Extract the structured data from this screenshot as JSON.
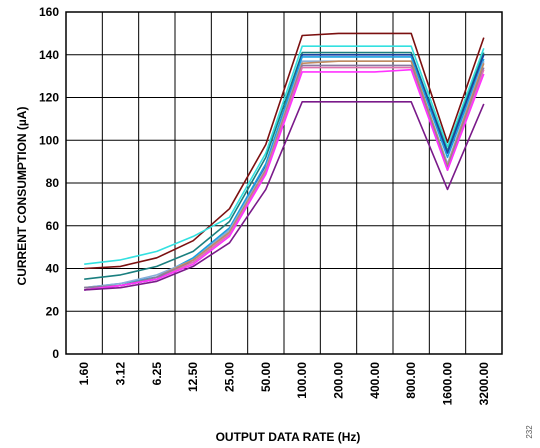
{
  "chart_data": {
    "type": "line",
    "xlabel": "OUTPUT DATA RATE (Hz)",
    "ylabel": "CURRENT CONSUMPTION (µA)",
    "ylim": [
      0,
      160
    ],
    "yticks": [
      0,
      20,
      40,
      60,
      80,
      100,
      120,
      140,
      160
    ],
    "categories": [
      "1.60",
      "3.12",
      "6.25",
      "12.50",
      "25.00",
      "50.00",
      "100.00",
      "200.00",
      "400.00",
      "800.00",
      "1600.00",
      "3200.00"
    ],
    "grid": true,
    "figure_id": "232",
    "series": [
      {
        "color": "#7b1010",
        "values": [
          40,
          41,
          45,
          53,
          68,
          98,
          149,
          150,
          150,
          150,
          99,
          148
        ]
      },
      {
        "color": "#33e0e0",
        "values": [
          42,
          44,
          48,
          55,
          64,
          94,
          144,
          144,
          144,
          144,
          97,
          143
        ]
      },
      {
        "color": "#1a7f7f",
        "values": [
          35,
          37,
          41,
          48,
          62,
          92,
          141,
          141,
          141,
          141,
          95,
          141
        ]
      },
      {
        "color": "#1a3fa0",
        "values": [
          30,
          32,
          35,
          44,
          58,
          88,
          140,
          140,
          140,
          140,
          94,
          140
        ]
      },
      {
        "color": "#1aa0e0",
        "values": [
          31,
          33,
          36,
          45,
          59,
          89,
          139,
          139,
          139,
          139,
          92,
          138
        ]
      },
      {
        "color": "#8aaed8",
        "values": [
          31,
          33,
          37,
          44,
          58,
          87,
          137,
          137,
          137,
          137,
          89,
          137
        ]
      },
      {
        "color": "#c08a60",
        "values": [
          31,
          32,
          36,
          44,
          57,
          86,
          136,
          137,
          137,
          137,
          88,
          136
        ]
      },
      {
        "color": "#8a7aa0",
        "values": [
          31,
          32,
          36,
          43,
          56,
          85,
          135,
          135,
          135,
          135,
          87,
          134
        ]
      },
      {
        "color": "#e070b0",
        "values": [
          30,
          32,
          35,
          43,
          56,
          85,
          134,
          134,
          134,
          134,
          86,
          133
        ]
      },
      {
        "color": "#ff33ff",
        "values": [
          30,
          32,
          35,
          42,
          55,
          84,
          132,
          132,
          132,
          133,
          86,
          131
        ]
      },
      {
        "color": "#7a1a8a",
        "values": [
          30,
          31,
          34,
          41,
          52,
          77,
          118,
          118,
          118,
          118,
          77,
          117
        ]
      }
    ]
  }
}
